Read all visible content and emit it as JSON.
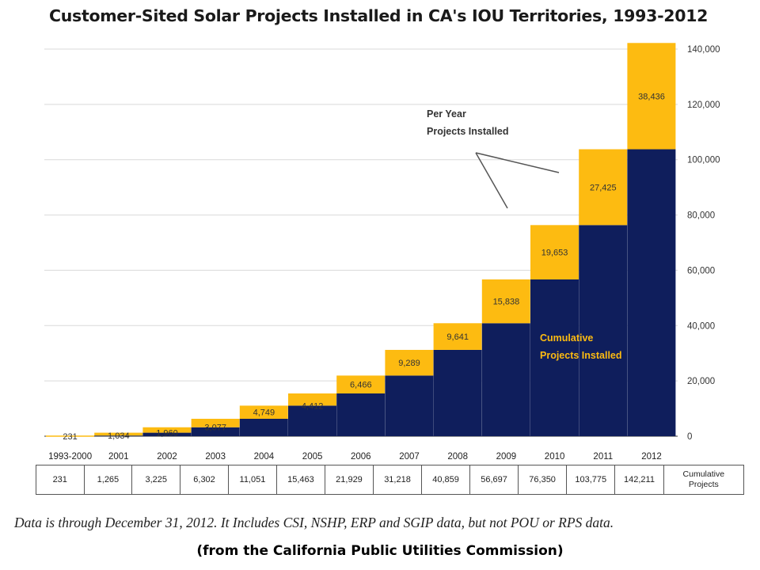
{
  "title": "Customer-Sited Solar Projects Installed in CA's IOU Territories, 1993-2012",
  "footnote": "Data is through December 31, 2012. It Includes CSI, NSHP, ERP and SGIP data, but not POU or RPS data.",
  "source": "(from the California Public Utilities Commission)",
  "colors": {
    "cumulative": "#0f1e5c",
    "per_year": "#fdbb11",
    "grid": "#d9d9d9"
  },
  "chart_data": {
    "type": "bar",
    "stacked": true,
    "categories": [
      "1993-2000",
      "2001",
      "2002",
      "2003",
      "2004",
      "2005",
      "2006",
      "2007",
      "2008",
      "2009",
      "2010",
      "2011",
      "2012"
    ],
    "series": [
      {
        "name": "Cumulative Projects Installed",
        "values": [
          0,
          231,
          1265,
          3225,
          6302,
          11051,
          15463,
          21929,
          31218,
          40859,
          56697,
          76350,
          103775
        ]
      },
      {
        "name": "Per Year Projects Installed",
        "values": [
          231,
          1034,
          1960,
          3077,
          4749,
          4412,
          6466,
          9289,
          9641,
          15838,
          19653,
          27425,
          38436
        ]
      }
    ],
    "per_year_labels": [
      "231",
      "1,034",
      "1,960",
      "3,077",
      "4,749",
      "4,412",
      "6,466",
      "9,289",
      "9,641",
      "15,838",
      "19,653",
      "27,425",
      "38,436"
    ],
    "ylim": [
      0,
      140000
    ],
    "yticks": [
      "0",
      "20,000",
      "40,000",
      "60,000",
      "80,000",
      "100,000",
      "120,000",
      "140,000"
    ],
    "y_axis_side": "right",
    "grid": true,
    "annotations": {
      "per_year": [
        "Per Year",
        "Projects Installed"
      ],
      "cumulative": [
        "Cumulative",
        "Projects Installed"
      ]
    },
    "table": {
      "row_label": [
        "Cumulative",
        "Projects"
      ],
      "values": [
        "231",
        "1,265",
        "3,225",
        "6,302",
        "11,051",
        "15,463",
        "21,929",
        "31,218",
        "40,859",
        "56,697",
        "76,350",
        "103,775",
        "142,211"
      ]
    }
  }
}
